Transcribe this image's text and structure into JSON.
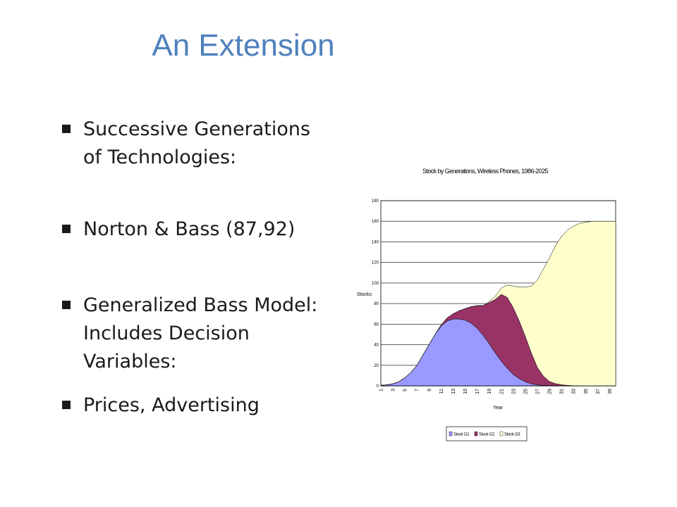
{
  "slide": {
    "title": "An Extension",
    "bullets": [
      "Successive Generations of Technologies:",
      "Norton & Bass (87,92)",
      "Generalized Bass Model: Includes Decision Variables:",
      "Prices, Advertising"
    ]
  },
  "chart_data": {
    "type": "area",
    "title": "Stock by Generations, Wireless Phones, 1986-2025",
    "xlabel": "Year",
    "ylabel": "Stocks",
    "ylim": [
      0,
      180
    ],
    "yticks": [
      0,
      20,
      40,
      60,
      80,
      100,
      120,
      140,
      160,
      180
    ],
    "x": [
      1,
      2,
      3,
      4,
      5,
      6,
      7,
      8,
      9,
      10,
      11,
      12,
      13,
      14,
      15,
      16,
      17,
      18,
      19,
      20,
      21,
      22,
      23,
      24,
      25,
      26,
      27,
      28,
      29,
      30,
      31,
      32,
      33,
      34,
      35,
      36,
      37,
      38,
      39,
      40
    ],
    "xtick_labels": [
      "1",
      "3",
      "5",
      "7",
      "9",
      "11",
      "13",
      "15",
      "17",
      "19",
      "21",
      "23",
      "25",
      "27",
      "29",
      "31",
      "33",
      "35",
      "37",
      "39"
    ],
    "stacked": true,
    "grid": true,
    "legend_position": "bottom",
    "series": [
      {
        "name": "Stock G1",
        "color": "#9999ff",
        "values": [
          0.5,
          1,
          2,
          4,
          8,
          13,
          20,
          30,
          40,
          50,
          58,
          63,
          65,
          65,
          64,
          61,
          56,
          49,
          41,
          32,
          24,
          17,
          11,
          7,
          4,
          2,
          1,
          0.5,
          0.3,
          0.2,
          0.1,
          0,
          0,
          0,
          0,
          0,
          0,
          0,
          0,
          0
        ]
      },
      {
        "name": "Stock G2",
        "color": "#993366",
        "values": [
          0,
          0,
          0,
          0,
          0,
          0,
          0,
          0,
          0,
          0,
          1,
          3,
          5,
          8,
          11,
          16,
          22,
          29,
          40,
          52,
          65,
          69,
          65,
          56,
          44,
          30,
          17,
          9,
          4,
          2,
          1,
          0.5,
          0.2,
          0,
          0,
          0,
          0,
          0,
          0,
          0
        ]
      },
      {
        "name": "Stock G3",
        "color": "#ffffcc",
        "values": [
          0,
          0,
          0,
          0,
          0,
          0,
          0,
          0,
          0,
          0,
          0,
          0,
          0,
          0,
          0,
          0,
          0,
          0,
          1,
          3,
          6,
          12,
          21,
          33,
          48,
          65,
          85,
          104,
          120,
          134,
          144,
          151,
          155,
          158,
          159,
          160,
          160,
          160,
          160,
          160
        ]
      }
    ]
  }
}
